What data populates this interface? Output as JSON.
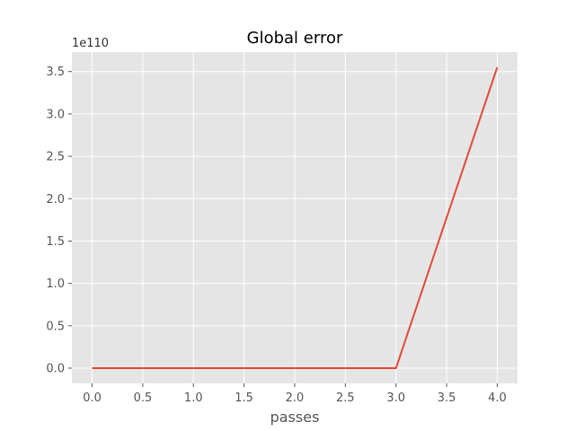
{
  "chart_data": {
    "type": "line",
    "title": "Global error",
    "xlabel": "passes",
    "ylabel": "",
    "y_offset_label": "1e110",
    "x": [
      0,
      1,
      2,
      3,
      4
    ],
    "series": [
      {
        "values": [
          0,
          0,
          0,
          0,
          3.55
        ],
        "color": "#E24A33"
      }
    ],
    "xlim": [
      -0.2,
      4.2
    ],
    "ylim": [
      -0.18,
      3.73
    ],
    "xticks": [
      0,
      0.5,
      1,
      1.5,
      2,
      2.5,
      3,
      3.5,
      4
    ],
    "xtick_labels": [
      "0.0",
      "0.5",
      "1.0",
      "1.5",
      "2.0",
      "2.5",
      "3.0",
      "3.5",
      "4.0"
    ],
    "yticks": [
      0,
      0.5,
      1,
      1.5,
      2,
      2.5,
      3,
      3.5
    ],
    "ytick_labels": [
      "0.0",
      "0.5",
      "1.0",
      "1.5",
      "2.0",
      "2.5",
      "3.0",
      "3.5"
    ],
    "grid": true,
    "background_color": "#E5E5E5",
    "grid_color": "#FFFFFF"
  }
}
